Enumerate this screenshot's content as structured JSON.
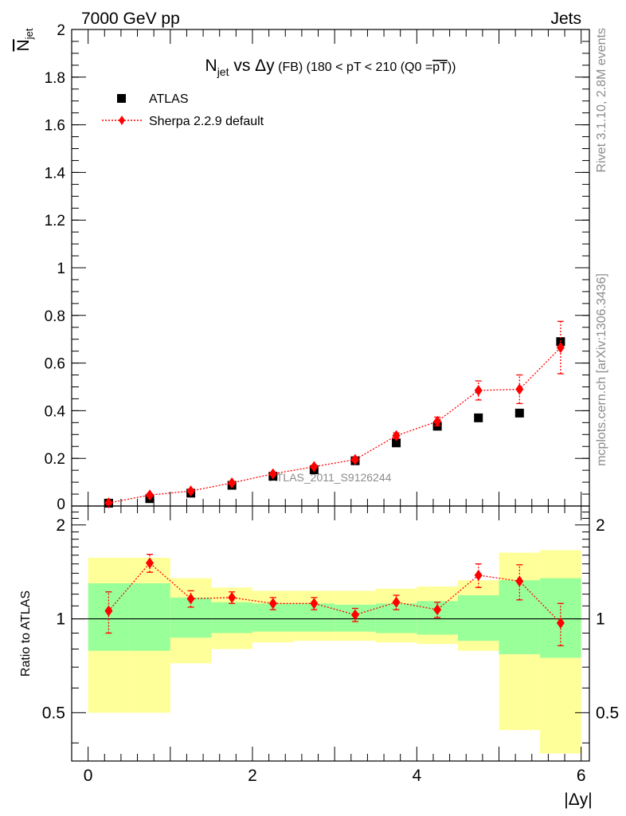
{
  "header": {
    "left": "7000 GeV pp",
    "right": "Jets",
    "watermark": "ATLAS_2011_S9126244",
    "side_top": "Rivet 3.1.10,  2.8M events",
    "side_bottom": "mcplots.cern.ch [arXiv:1306.3436]"
  },
  "chart_data": [
    {
      "type": "scatter",
      "title": {
        "n": "N",
        "n_sub": "jet",
        "mid": " vs Δy",
        "fb": " (FB)",
        "cut": " (180 < pT < 210 (Q0 =",
        "pt": "pT",
        "close": "))"
      },
      "ylabel": {
        "n": "N",
        "sub": "jet"
      },
      "xlim": [
        -0.2,
        6.1
      ],
      "ylim": [
        0,
        2
      ],
      "yticks": [
        {
          "v": 0,
          "label": "0"
        },
        {
          "v": 0.2,
          "label": "0.2"
        },
        {
          "v": 0.4,
          "label": "0.4"
        },
        {
          "v": 0.6,
          "label": "0.6"
        },
        {
          "v": 0.8,
          "label": "0.8"
        },
        {
          "v": 1,
          "label": "1"
        },
        {
          "v": 1.2,
          "label": "1.2"
        },
        {
          "v": 1.4,
          "label": "1.4"
        },
        {
          "v": 1.6,
          "label": "1.6"
        },
        {
          "v": 1.8,
          "label": "1.8"
        },
        {
          "v": 2,
          "label": "2"
        }
      ],
      "legend": {
        "position": "top-left"
      },
      "series": [
        {
          "name": "ATLAS",
          "color": "#000000",
          "marker": "square",
          "x": [
            0.25,
            0.75,
            1.25,
            1.75,
            2.25,
            2.75,
            3.25,
            3.75,
            4.25,
            4.75,
            5.25,
            5.75
          ],
          "y": [
            0.012,
            0.031,
            0.054,
            0.087,
            0.125,
            0.152,
            0.19,
            0.265,
            0.335,
            0.37,
            0.39,
            0.69
          ]
        },
        {
          "name": "Sherpa 2.2.9 default",
          "color": "#ff0000",
          "marker": "diamond",
          "line": "dotted",
          "x": [
            0.25,
            0.75,
            1.25,
            1.75,
            2.25,
            2.75,
            3.25,
            3.75,
            4.25,
            4.75,
            5.25,
            5.75
          ],
          "y": [
            0.013,
            0.046,
            0.063,
            0.097,
            0.135,
            0.165,
            0.195,
            0.295,
            0.355,
            0.485,
            0.49,
            0.665
          ],
          "err": [
            0.003,
            0.006,
            0.006,
            0.006,
            0.006,
            0.007,
            0.008,
            0.012,
            0.018,
            0.04,
            0.06,
            0.11
          ]
        }
      ]
    },
    {
      "type": "scatter",
      "ylabel": "Ratio to ATLAS",
      "xlabel": "|Δy|",
      "xlim": [
        -0.2,
        6.1
      ],
      "ylim": [
        0.35,
        2.3
      ],
      "log_y": true,
      "reference_line": 1,
      "yticks": [
        {
          "v": 0.5,
          "label": "0.5"
        },
        {
          "v": 1,
          "label": "1"
        },
        {
          "v": 2,
          "label": "2"
        }
      ],
      "xticks": [
        {
          "v": 0,
          "label": "0"
        },
        {
          "v": 2,
          "label": "2"
        },
        {
          "v": 4,
          "label": "4"
        },
        {
          "v": 6,
          "label": "6"
        }
      ],
      "bands": {
        "edges": [
          0,
          0.5,
          1.0,
          1.5,
          2.0,
          2.5,
          3.0,
          3.5,
          4.0,
          4.5,
          5.0,
          5.5,
          6.0
        ],
        "inner_color": "#99ff99",
        "outer_color": "#ffff99",
        "inner_low": [
          0.79,
          0.79,
          0.87,
          0.9,
          0.91,
          0.91,
          0.91,
          0.9,
          0.89,
          0.85,
          0.77,
          0.75
        ],
        "inner_high": [
          1.3,
          1.3,
          1.17,
          1.13,
          1.12,
          1.12,
          1.11,
          1.12,
          1.14,
          1.19,
          1.33,
          1.35
        ],
        "outer_low": [
          0.5,
          0.5,
          0.72,
          0.8,
          0.84,
          0.85,
          0.85,
          0.84,
          0.83,
          0.79,
          0.44,
          0.37
        ],
        "outer_high": [
          1.57,
          1.57,
          1.35,
          1.26,
          1.23,
          1.23,
          1.23,
          1.25,
          1.27,
          1.33,
          1.63,
          1.66
        ]
      },
      "series": [
        {
          "name": "Sherpa 2.2.9 default",
          "color": "#ff0000",
          "marker": "diamond",
          "line": "dotted",
          "x": [
            0.25,
            0.75,
            1.25,
            1.75,
            2.25,
            2.75,
            3.25,
            3.75,
            4.25,
            4.75,
            5.25,
            5.75
          ],
          "y": [
            1.06,
            1.51,
            1.16,
            1.17,
            1.12,
            1.12,
            1.03,
            1.13,
            1.07,
            1.38,
            1.32,
            0.97
          ],
          "err": [
            0.16,
            0.1,
            0.07,
            0.05,
            0.05,
            0.05,
            0.05,
            0.06,
            0.06,
            0.12,
            0.17,
            0.15
          ]
        }
      ]
    }
  ]
}
